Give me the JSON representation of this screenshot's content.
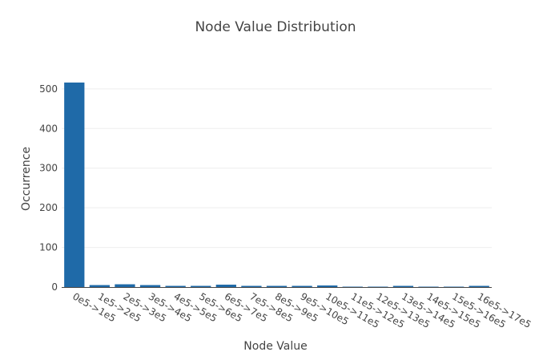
{
  "chart_data": {
    "type": "bar",
    "title": "Node Value Distribution",
    "xlabel": "Node Value",
    "ylabel": "Occurrence",
    "categories": [
      "0e5->1e5",
      "1e5->2e5",
      "2e5->3e5",
      "3e5->4e5",
      "4e5->5e5",
      "5e5->6e5",
      "6e5->7e5",
      "7e5->8e5",
      "8e5->9e5",
      "9e5->10e5",
      "10e5->11e5",
      "11e5->12e5",
      "12e5->13e5",
      "13e5->14e5",
      "14e5->15e5",
      "15e5->16e5",
      "16e5->17e5"
    ],
    "values": [
      516,
      5,
      7,
      5,
      3,
      3,
      6,
      3,
      3,
      3,
      4,
      1,
      1,
      3,
      1,
      1,
      3
    ],
    "ylim": [
      0,
      530
    ],
    "yticks": [
      0,
      100,
      200,
      300,
      400,
      500
    ],
    "grid": true,
    "bar_color": "#1f6aa8"
  }
}
